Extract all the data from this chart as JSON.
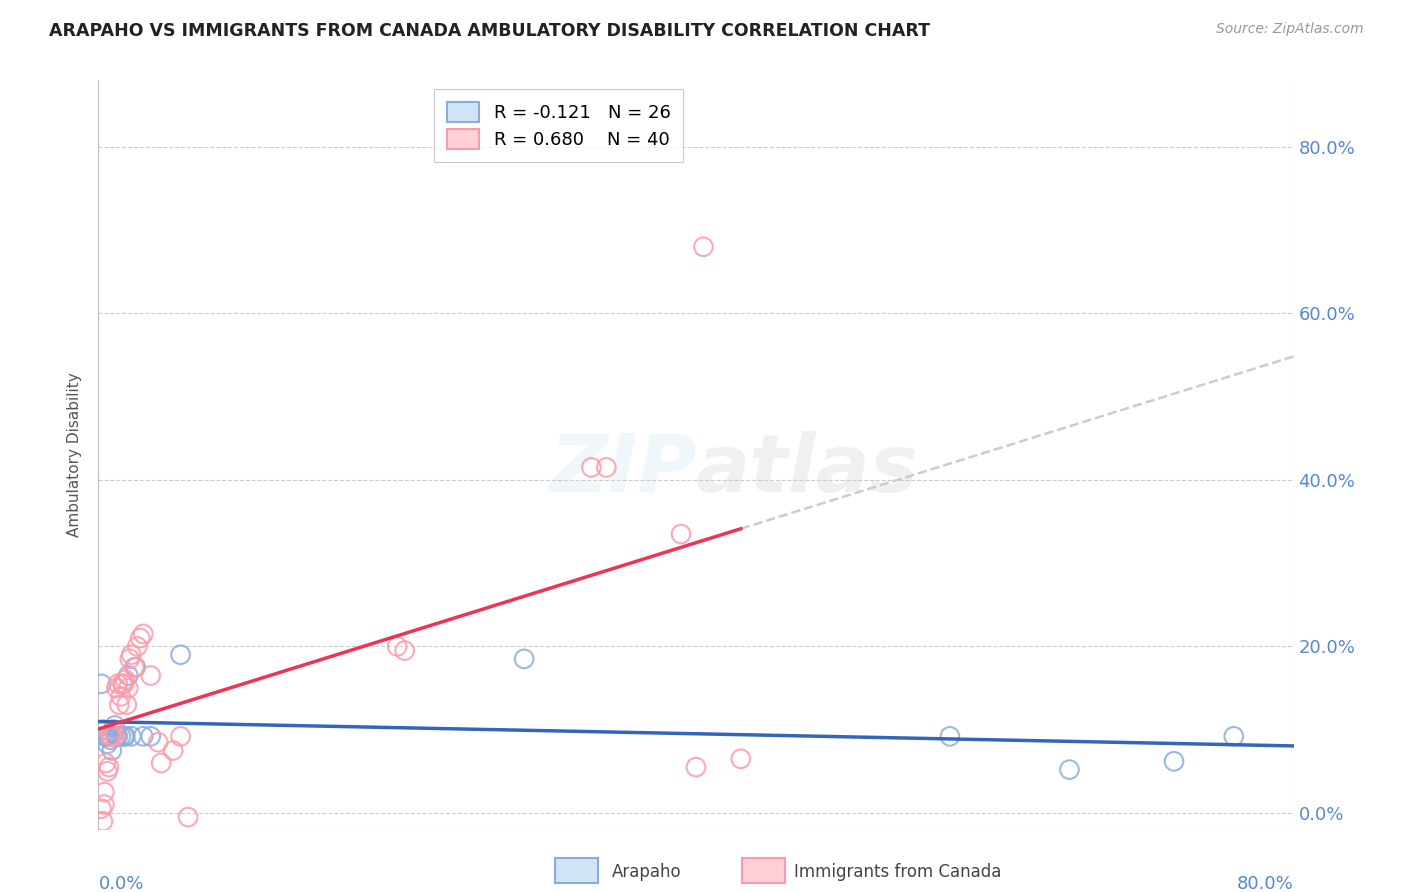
{
  "title": "ARAPAHO VS IMMIGRANTS FROM CANADA AMBULATORY DISABILITY CORRELATION CHART",
  "source": "Source: ZipAtlas.com",
  "ylabel": "Ambulatory Disability",
  "ytick_values": [
    0.0,
    0.2,
    0.4,
    0.6,
    0.8
  ],
  "xlim": [
    0.0,
    0.8
  ],
  "ylim": [
    -0.02,
    0.88
  ],
  "color_blue": "#88AEDD",
  "color_pink": "#FF99AA",
  "trendline_blue_color": "#3366BB",
  "trendline_pink_color": "#EE3355",
  "trendline_dashed_color": "#CCCCCC",
  "background_color": "#FFFFFF",
  "grid_color": "#CCCCCC",
  "title_color": "#222222",
  "axis_label_color": "#5588CC",
  "watermark_color": "#AACCEE",
  "legend_r_blue": "R = -0.121",
  "legend_n_blue": "N = 26",
  "legend_r_pink": "R = 0.680",
  "legend_n_pink": "N = 40",
  "arapaho_points": [
    [
      0.002,
      0.155
    ],
    [
      0.003,
      0.1
    ],
    [
      0.004,
      0.092
    ],
    [
      0.005,
      0.092
    ],
    [
      0.006,
      0.083
    ],
    [
      0.007,
      0.092
    ],
    [
      0.008,
      0.088
    ],
    [
      0.009,
      0.075
    ],
    [
      0.01,
      0.1
    ],
    [
      0.011,
      0.105
    ],
    [
      0.012,
      0.092
    ],
    [
      0.013,
      0.092
    ],
    [
      0.015,
      0.092
    ],
    [
      0.017,
      0.092
    ],
    [
      0.018,
      0.092
    ],
    [
      0.02,
      0.165
    ],
    [
      0.022,
      0.092
    ],
    [
      0.025,
      0.175
    ],
    [
      0.03,
      0.092
    ],
    [
      0.035,
      0.092
    ],
    [
      0.055,
      0.19
    ],
    [
      0.285,
      0.185
    ],
    [
      0.57,
      0.092
    ],
    [
      0.65,
      0.052
    ],
    [
      0.72,
      0.062
    ],
    [
      0.76,
      0.092
    ]
  ],
  "immigrants_points": [
    [
      0.002,
      0.005
    ],
    [
      0.003,
      -0.01
    ],
    [
      0.004,
      0.01
    ],
    [
      0.004,
      0.025
    ],
    [
      0.005,
      0.06
    ],
    [
      0.006,
      0.05
    ],
    [
      0.007,
      0.055
    ],
    [
      0.008,
      0.092
    ],
    [
      0.009,
      0.092
    ],
    [
      0.01,
      0.1
    ],
    [
      0.011,
      0.092
    ],
    [
      0.012,
      0.15
    ],
    [
      0.013,
      0.155
    ],
    [
      0.014,
      0.13
    ],
    [
      0.015,
      0.14
    ],
    [
      0.016,
      0.155
    ],
    [
      0.017,
      0.155
    ],
    [
      0.018,
      0.16
    ],
    [
      0.019,
      0.13
    ],
    [
      0.02,
      0.15
    ],
    [
      0.021,
      0.185
    ],
    [
      0.022,
      0.19
    ],
    [
      0.024,
      0.175
    ],
    [
      0.026,
      0.2
    ],
    [
      0.028,
      0.21
    ],
    [
      0.03,
      0.215
    ],
    [
      0.035,
      0.165
    ],
    [
      0.04,
      0.085
    ],
    [
      0.042,
      0.06
    ],
    [
      0.05,
      0.075
    ],
    [
      0.055,
      0.092
    ],
    [
      0.06,
      -0.005
    ],
    [
      0.2,
      0.2
    ],
    [
      0.205,
      0.195
    ],
    [
      0.33,
      0.415
    ],
    [
      0.34,
      0.415
    ],
    [
      0.39,
      0.335
    ],
    [
      0.4,
      0.055
    ],
    [
      0.405,
      0.68
    ],
    [
      0.43,
      0.065
    ]
  ]
}
